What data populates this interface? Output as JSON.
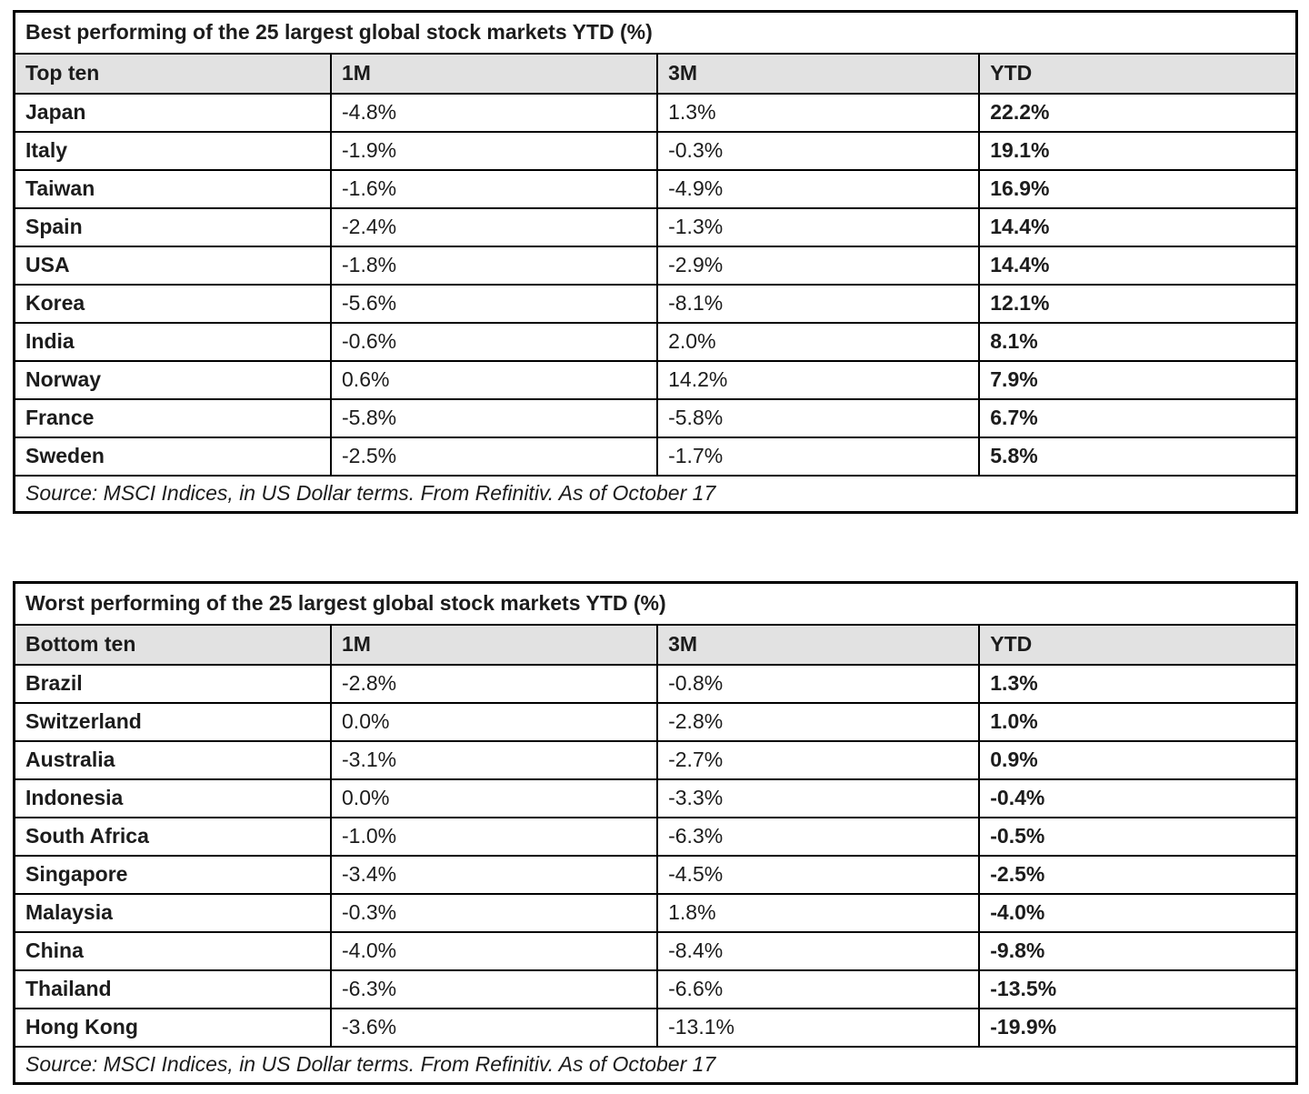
{
  "chart_data": [
    {
      "type": "table",
      "title": "Best performing of the 25 largest global stock markets YTD (%)",
      "columns": [
        "Top ten",
        "1M",
        "3M",
        "YTD"
      ],
      "rows": [
        [
          "Japan",
          "-4.8%",
          "1.3%",
          "22.2%"
        ],
        [
          "Italy",
          "-1.9%",
          "-0.3%",
          "19.1%"
        ],
        [
          "Taiwan",
          "-1.6%",
          "-4.9%",
          "16.9%"
        ],
        [
          "Spain",
          "-2.4%",
          "-1.3%",
          "14.4%"
        ],
        [
          "USA",
          "-1.8%",
          "-2.9%",
          "14.4%"
        ],
        [
          "Korea",
          "-5.6%",
          "-8.1%",
          "12.1%"
        ],
        [
          "India",
          "-0.6%",
          "2.0%",
          "8.1%"
        ],
        [
          "Norway",
          "0.6%",
          "14.2%",
          "7.9%"
        ],
        [
          "France",
          "-5.8%",
          "-5.8%",
          "6.7%"
        ],
        [
          "Sweden",
          "-2.5%",
          "-1.7%",
          "5.8%"
        ]
      ],
      "source": "Source: MSCI Indices, in US Dollar terms. From Refinitiv. As of October 17"
    },
    {
      "type": "table",
      "title": "Worst performing of the 25 largest global stock markets YTD (%)",
      "columns": [
        "Bottom ten",
        "1M",
        "3M",
        "YTD"
      ],
      "rows": [
        [
          "Brazil",
          "-2.8%",
          "-0.8%",
          "1.3%"
        ],
        [
          "Switzerland",
          "0.0%",
          "-2.8%",
          "1.0%"
        ],
        [
          "Australia",
          "-3.1%",
          "-2.7%",
          "0.9%"
        ],
        [
          "Indonesia",
          "0.0%",
          "-3.3%",
          "-0.4%"
        ],
        [
          "South Africa",
          "-1.0%",
          "-6.3%",
          "-0.5%"
        ],
        [
          "Singapore",
          "-3.4%",
          "-4.5%",
          "-2.5%"
        ],
        [
          "Malaysia",
          "-0.3%",
          "1.8%",
          "-4.0%"
        ],
        [
          "China",
          "-4.0%",
          "-8.4%",
          "-9.8%"
        ],
        [
          "Thailand",
          "-6.3%",
          "-6.6%",
          "-13.5%"
        ],
        [
          "Hong Kong",
          "-3.6%",
          "-13.1%",
          "-19.9%"
        ]
      ],
      "source": "Source: MSCI Indices, in US Dollar terms. From Refinitiv. As of October 17"
    }
  ],
  "colors": {
    "header_bg": "#e2e2e2",
    "border": "#000000",
    "text": "#1c1c1c"
  }
}
